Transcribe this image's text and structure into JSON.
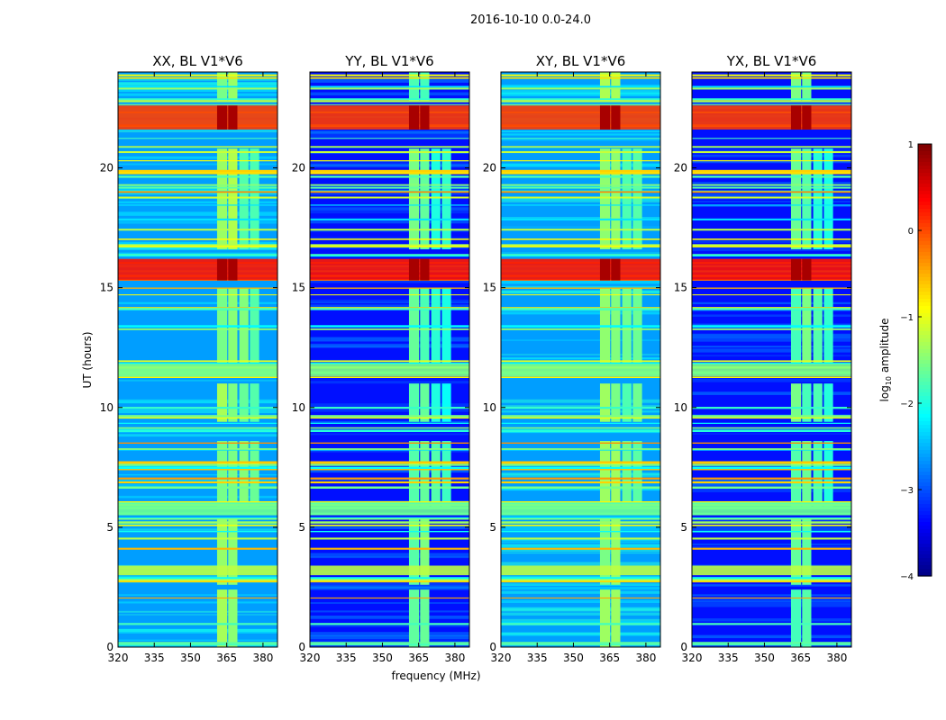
{
  "chart_data": {
    "type": "heatmap",
    "suptitle": "2016-10-10 0.0-24.0",
    "xlabel": "frequency (MHz)",
    "ylabel": "UT (hours)",
    "xlim": [
      320,
      386
    ],
    "ylim": [
      0,
      24
    ],
    "xticks": [
      "320",
      "335",
      "350",
      "365",
      "380"
    ],
    "yticks": [
      "0",
      "5",
      "10",
      "15",
      "20"
    ],
    "panels": [
      {
        "title": "XX, BL V1*V6",
        "base_level": -2.6
      },
      {
        "title": "YY, BL V1*V6",
        "base_level": -3.3
      },
      {
        "title": "XY, BL V1*V6",
        "base_level": -2.6
      },
      {
        "title": "YX, BL V1*V6",
        "base_level": -3.3
      }
    ],
    "colorbar": {
      "label_prefix": "log",
      "label_sub": "10",
      "label_suffix": " amplitude",
      "range": [
        -4,
        1
      ],
      "ticks": [
        "1",
        "0",
        "−1",
        "−2",
        "−3",
        "−4"
      ],
      "colormap": "jet"
    },
    "signal_bands_mhz": [
      {
        "from": 361,
        "to": 365.2,
        "level": -1.4
      },
      {
        "from": 365.6,
        "to": 369.4,
        "level": -1.4
      },
      {
        "from": 370.2,
        "to": 374.0,
        "level": -1.6
      },
      {
        "from": 374.6,
        "to": 378.4,
        "level": -1.7
      }
    ],
    "rfi_events_hours": [
      {
        "from": 21.6,
        "to": 22.6,
        "level": 0.1
      },
      {
        "from": 15.3,
        "to": 16.2,
        "level": 0.3
      },
      {
        "from": 11.3,
        "to": 11.8,
        "level": -1.5
      },
      {
        "from": 5.5,
        "to": 6.0,
        "level": -1.6
      },
      {
        "from": 3.0,
        "to": 3.4,
        "level": -1.2
      }
    ]
  }
}
